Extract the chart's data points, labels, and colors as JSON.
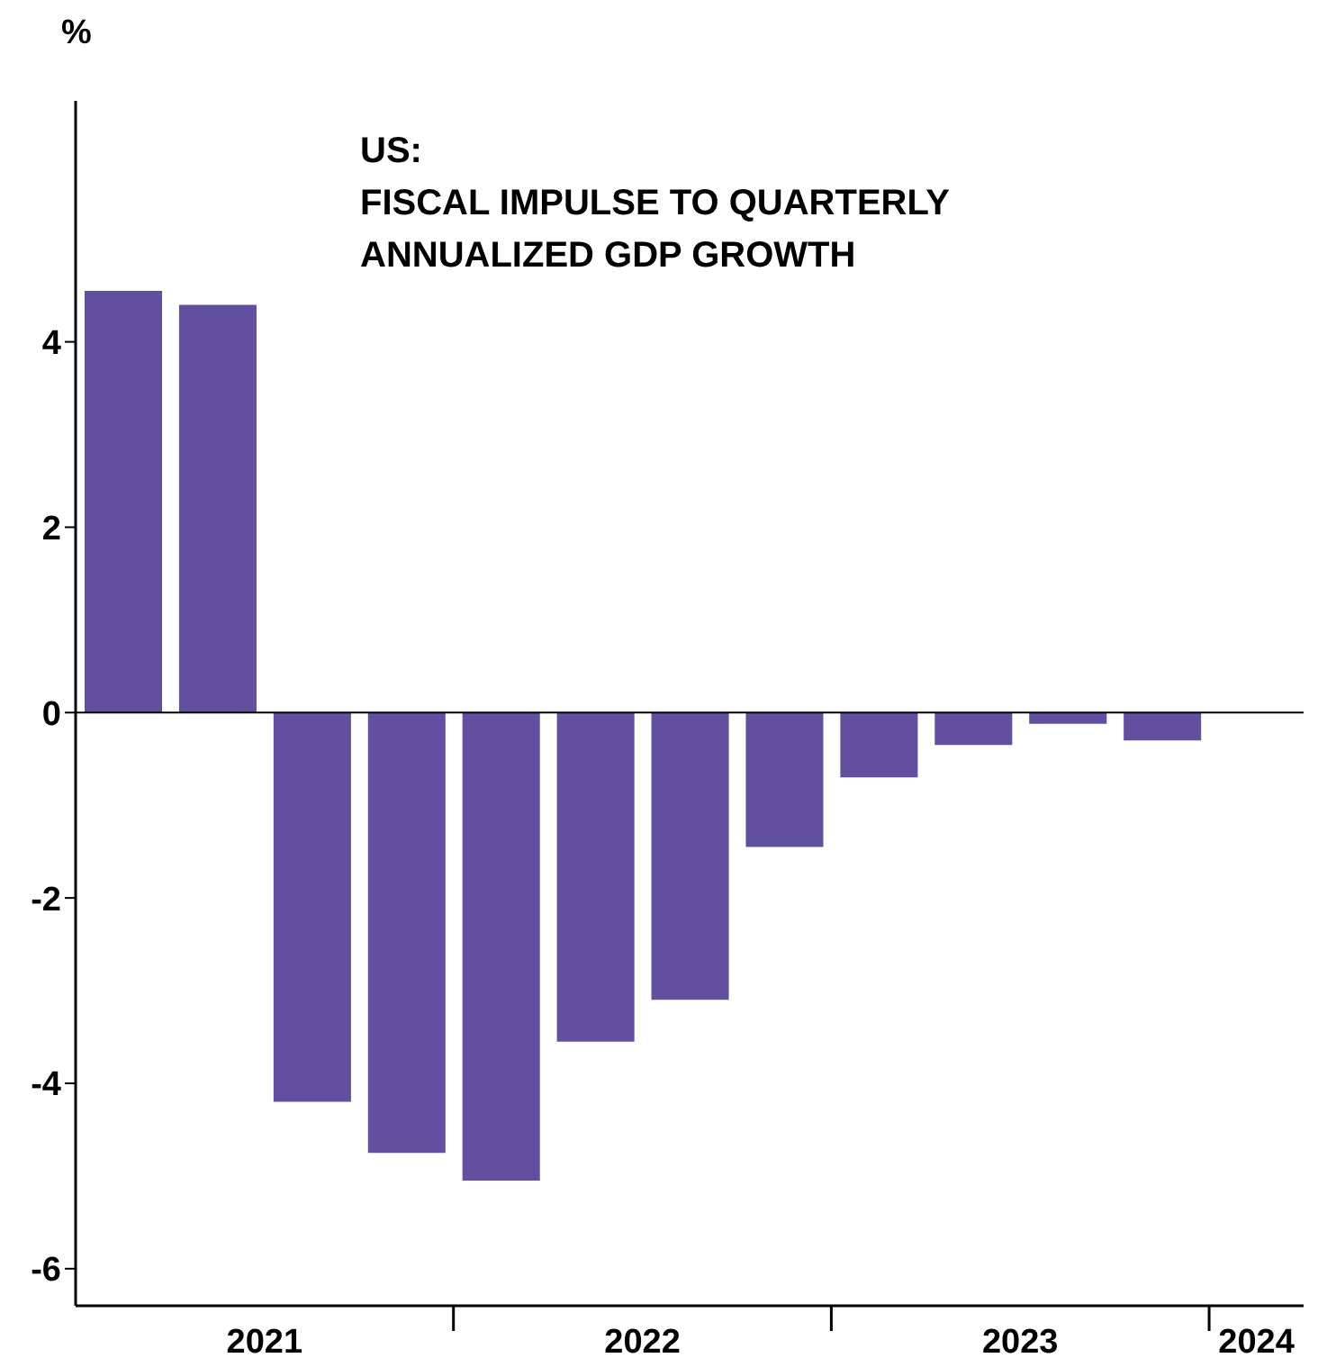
{
  "chart_data": {
    "type": "bar",
    "title": "US:\nFISCAL IMPULSE TO QUARTERLY\nANNUALIZED GDP GROWTH",
    "ylabel": "%",
    "x": [
      2021.125,
      2021.375,
      2021.625,
      2021.875,
      2022.125,
      2022.375,
      2022.625,
      2022.875,
      2023.125,
      2023.375,
      2023.625,
      2023.875
    ],
    "values": [
      4.55,
      4.4,
      -4.2,
      -4.75,
      -5.05,
      -3.55,
      -3.1,
      -1.45,
      -0.7,
      -0.35,
      -0.12,
      -0.3
    ],
    "color": "#634f9f",
    "xlim": [
      2021,
      2024.25
    ],
    "xticks": [
      {
        "value": 2021.5,
        "label": "2021"
      },
      {
        "value": 2022,
        "label": null
      },
      {
        "value": 2022.5,
        "label": "2022"
      },
      {
        "value": 2023,
        "label": null
      },
      {
        "value": 2023.5,
        "label": "2023"
      },
      {
        "value": 2024,
        "label": null
      },
      {
        "value": 2024.125,
        "label": "2024"
      }
    ],
    "ylim": [
      -6.4,
      6.6
    ],
    "yticks": [
      -6,
      -4,
      -2,
      0,
      2,
      4
    ],
    "ref_lines": [
      {
        "axis": "y",
        "value": 0,
        "color": "#000000"
      }
    ],
    "grid": false,
    "legend": false
  }
}
